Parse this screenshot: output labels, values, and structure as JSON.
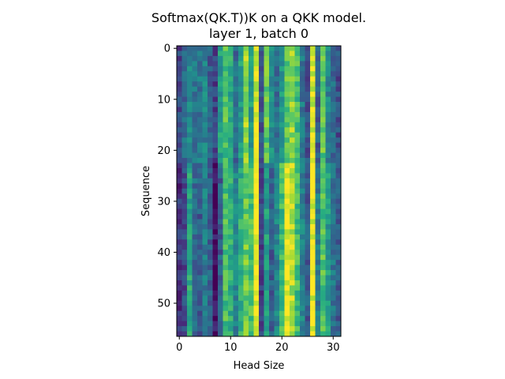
{
  "chart_data": {
    "type": "heatmap",
    "title": "Softmax(QK.T))K on a QKK model.",
    "subtitle": "layer 1, batch 0",
    "xlabel": "Head Size",
    "ylabel": "Sequence",
    "rows": 57,
    "cols": 32,
    "xlim": [
      -0.5,
      31.5
    ],
    "ylim": [
      56.5,
      -0.5
    ],
    "xticks": [
      0,
      10,
      20,
      30
    ],
    "yticks": [
      0,
      10,
      20,
      30,
      40,
      50
    ],
    "colormap": "viridis",
    "grid": false,
    "column_means": [
      0.15,
      0.22,
      0.6,
      0.35,
      0.3,
      0.42,
      0.3,
      0.05,
      0.3,
      0.7,
      0.62,
      0.45,
      0.62,
      0.78,
      0.72,
      1.0,
      0.2,
      0.55,
      0.3,
      0.45,
      0.68,
      0.98,
      0.88,
      0.7,
      0.45,
      0.3,
      0.98,
      0.4,
      0.72,
      0.55,
      0.4,
      0.3
    ],
    "column_means_upper": [
      0.22,
      0.35,
      0.45,
      0.4,
      0.4,
      0.45,
      0.3,
      0.2,
      0.55,
      0.72,
      0.6,
      0.35,
      0.55,
      0.85,
      0.55,
      0.95,
      0.25,
      0.75,
      0.5,
      0.35,
      0.55,
      0.75,
      0.85,
      0.7,
      0.4,
      0.25,
      0.95,
      0.3,
      0.75,
      0.45,
      0.35,
      0.25
    ]
  }
}
